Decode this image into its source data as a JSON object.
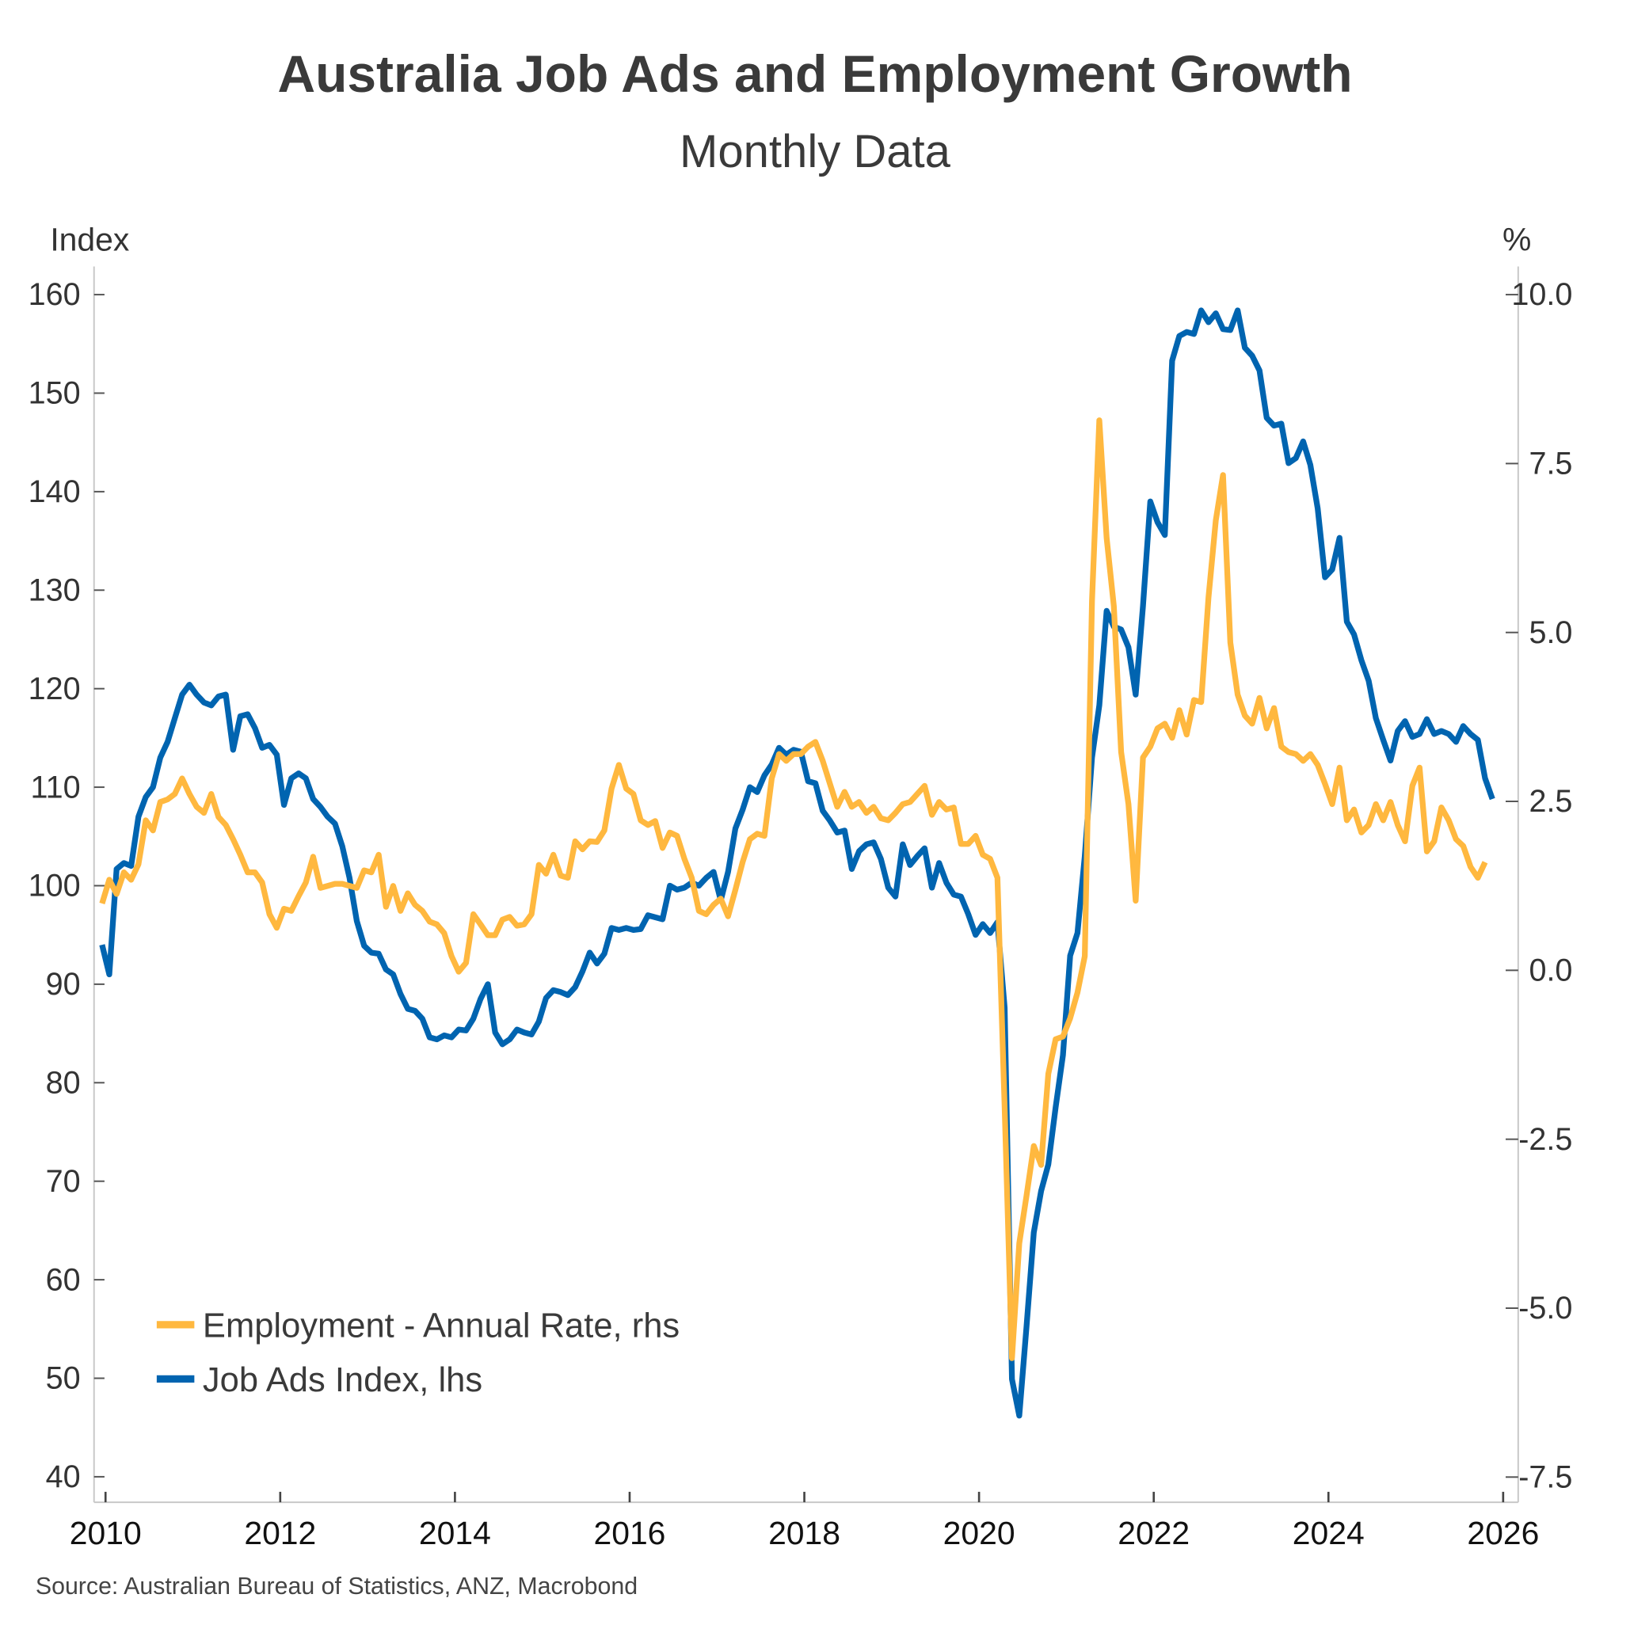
{
  "chart_data": {
    "type": "line",
    "title": "Australia Job Ads and Employment Growth",
    "subtitle": "Monthly Data",
    "ylabel_left": "Index",
    "ylabel_right": "%",
    "source": "Source: Australian Bureau of Statistics, ANZ, Macrobond",
    "x_start": "2010-01",
    "x_frequency": "monthly",
    "xlim": [
      2010,
      2026
    ],
    "x_ticks": [
      "2010",
      "2012",
      "2014",
      "2016",
      "2018",
      "2020",
      "2022",
      "2024",
      "2026"
    ],
    "ylim_left": [
      37,
      163
    ],
    "ylim_right": [
      -7.9,
      10.4
    ],
    "y_ticks_left": [
      "160",
      "150",
      "140",
      "130",
      "120",
      "110",
      "100",
      "90",
      "80",
      "70",
      "60",
      "50",
      "40"
    ],
    "y_ticks_right": [
      "10.0",
      "7.5",
      "5.0",
      "2.5",
      "0.0",
      "-2.5",
      "-5.0",
      "-7.5"
    ],
    "legend_position": "bottom-left",
    "grid": false,
    "series": [
      {
        "name": "Employment - Annual Rate, rhs",
        "axis": "right",
        "color": "#ffb83f",
        "values": [
          0.99,
          1.34,
          1.13,
          1.45,
          1.34,
          1.57,
          2.22,
          2.07,
          2.49,
          2.53,
          2.61,
          2.84,
          2.61,
          2.42,
          2.33,
          2.61,
          2.27,
          2.15,
          1.94,
          1.71,
          1.45,
          1.45,
          1.3,
          0.83,
          0.63,
          0.91,
          0.88,
          1.1,
          1.3,
          1.68,
          1.22,
          1.25,
          1.28,
          1.28,
          1.25,
          1.22,
          1.48,
          1.45,
          1.71,
          0.94,
          1.25,
          0.88,
          1.14,
          0.97,
          0.88,
          0.72,
          0.68,
          0.55,
          0.21,
          -0.02,
          0.11,
          0.83,
          0.68,
          0.52,
          0.52,
          0.75,
          0.79,
          0.66,
          0.68,
          0.83,
          1.56,
          1.43,
          1.71,
          1.4,
          1.37,
          1.91,
          1.79,
          1.91,
          1.9,
          2.07,
          2.69,
          3.04,
          2.69,
          2.61,
          2.22,
          2.15,
          2.21,
          1.81,
          2.04,
          1.99,
          1.65,
          1.37,
          0.88,
          0.83,
          0.97,
          1.06,
          0.8,
          1.19,
          1.6,
          1.94,
          2.02,
          1.99,
          2.84,
          3.2,
          3.1,
          3.2,
          3.2,
          3.31,
          3.38,
          3.1,
          2.76,
          2.42,
          2.64,
          2.42,
          2.49,
          2.33,
          2.42,
          2.25,
          2.22,
          2.33,
          2.46,
          2.49,
          2.61,
          2.73,
          2.3,
          2.49,
          2.38,
          2.41,
          1.87,
          1.87,
          1.99,
          1.71,
          1.65,
          1.37,
          -2.03,
          -5.74,
          -4.04,
          -3.34,
          -2.6,
          -2.88,
          -1.53,
          -1.02,
          -0.98,
          -0.71,
          -0.33,
          0.21,
          5.47,
          8.14,
          6.4,
          5.39,
          3.23,
          2.46,
          1.03,
          3.15,
          3.31,
          3.58,
          3.65,
          3.44,
          3.85,
          3.49,
          4.0,
          3.97,
          5.52,
          6.66,
          7.33,
          4.85,
          4.08,
          3.77,
          3.65,
          4.03,
          3.58,
          3.88,
          3.31,
          3.23,
          3.2,
          3.1,
          3.2,
          3.04,
          2.76,
          2.46,
          3.0,
          2.22,
          2.38,
          2.04,
          2.15,
          2.46,
          2.22,
          2.49,
          2.15,
          1.91,
          2.73,
          3.0,
          1.76,
          1.91,
          2.41,
          2.22,
          1.94,
          1.84,
          1.53,
          1.37,
          1.6
        ]
      },
      {
        "name": "Job Ads Index, lhs",
        "axis": "left",
        "color": "#0064b0",
        "values": [
          94,
          91,
          101.7,
          102.3,
          102,
          107,
          109,
          110,
          113,
          114.6,
          117,
          119.4,
          120.4,
          119.4,
          118.6,
          118.3,
          119.2,
          119.4,
          113.8,
          117.2,
          117.4,
          116,
          114,
          114.3,
          113.3,
          108.2,
          110.9,
          111.4,
          110.9,
          108.8,
          108,
          107,
          106.3,
          104,
          100.8,
          96.4,
          93.9,
          93.2,
          93.1,
          91.5,
          91,
          89,
          87.5,
          87.3,
          86.5,
          84.6,
          84.4,
          84.8,
          84.6,
          85.4,
          85.3,
          86.5,
          88.5,
          90,
          85.1,
          83.9,
          84.4,
          85.4,
          85.1,
          84.9,
          86.2,
          88.6,
          89.4,
          89.2,
          88.9,
          89.7,
          91.3,
          93.2,
          92.1,
          93.1,
          95.7,
          95.5,
          95.7,
          95.5,
          95.6,
          97,
          96.8,
          96.6,
          100,
          99.6,
          99.8,
          100.3,
          100,
          100.8,
          101.4,
          98.5,
          101.4,
          105.8,
          107.7,
          110,
          109.5,
          111.2,
          112.3,
          114,
          113.3,
          113.8,
          113.6,
          110.6,
          110.4,
          107.6,
          106.6,
          105.4,
          105.6,
          101.7,
          103.5,
          104.2,
          104.4,
          102.7,
          99.8,
          98.9,
          104.2,
          102.1,
          103,
          103.8,
          99.8,
          102.3,
          100.3,
          99.1,
          98.9,
          97.1,
          95,
          96.1,
          95.2,
          96.3,
          87.6,
          49.9,
          46.2,
          55.2,
          64.8,
          69,
          71.7,
          77.5,
          82.8,
          92.9,
          95.2,
          103,
          113,
          118.3,
          127.9,
          126.3,
          126,
          124.2,
          119.4,
          128.4,
          139,
          136.9,
          135.6,
          153.3,
          155.8,
          156.2,
          156,
          158.4,
          157.2,
          158.1,
          156.5,
          156.4,
          158.4,
          154.6,
          153.8,
          152.3,
          147.5,
          146.7,
          146.9,
          142.9,
          143.4,
          145.1,
          142.7,
          138.3,
          131.3,
          132.1,
          135.3,
          126.8,
          125.5,
          122.9,
          120.8,
          117,
          114.8,
          112.7,
          115.7,
          116.7,
          115.1,
          115.4,
          116.9,
          115.4,
          115.7,
          115.4,
          114.6,
          116.2,
          115.4,
          114.8,
          110.9,
          108.8
        ]
      }
    ]
  }
}
